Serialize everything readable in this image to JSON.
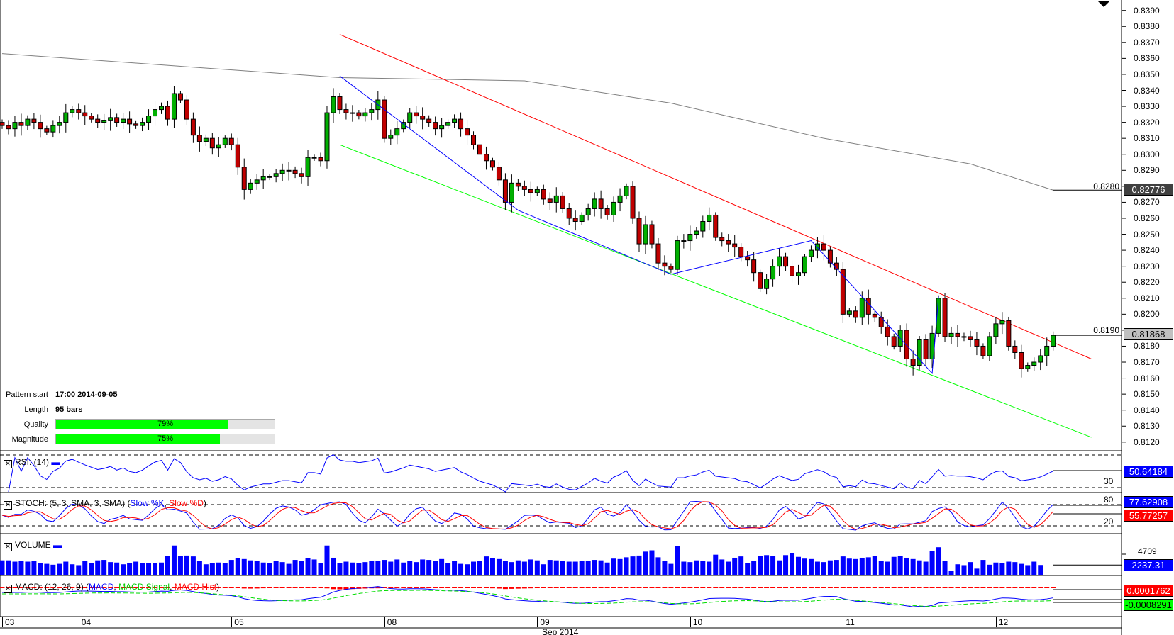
{
  "chart_data": {
    "type": "candlestick",
    "symbol_interval": "hourly",
    "price_axis": {
      "min": 0.812,
      "max": 0.839,
      "step": 0.001,
      "labels": [
        "0.8390",
        "0.8380",
        "0.8370",
        "0.8360",
        "0.8350",
        "0.8340",
        "0.8330",
        "0.8320",
        "0.8310",
        "0.8300",
        "0.8290",
        "0.8280",
        "0.8270",
        "0.8260",
        "0.8250",
        "0.8240",
        "0.8230",
        "0.8220",
        "0.8210",
        "0.8200",
        "0.8190",
        "0.8180",
        "0.8170",
        "0.8160",
        "0.8150",
        "0.8140",
        "0.8130",
        "0.8120"
      ]
    },
    "closes": [
      0.8318,
      0.8316,
      0.832,
      0.8318,
      0.8322,
      0.832,
      0.8316,
      0.8314,
      0.8318,
      0.832,
      0.8326,
      0.8328,
      0.8326,
      0.8324,
      0.8322,
      0.832,
      0.8321,
      0.8323,
      0.832,
      0.8322,
      0.8319,
      0.8318,
      0.832,
      0.8324,
      0.8328,
      0.833,
      0.8322,
      0.8338,
      0.8334,
      0.8322,
      0.8312,
      0.8308,
      0.831,
      0.8304,
      0.8306,
      0.831,
      0.8306,
      0.8292,
      0.8278,
      0.8282,
      0.8284,
      0.8286,
      0.8286,
      0.8288,
      0.829,
      0.829,
      0.8288,
      0.8286,
      0.8298,
      0.8298,
      0.8296,
      0.8326,
      0.8336,
      0.8328,
      0.8326,
      0.8326,
      0.8324,
      0.8326,
      0.8328,
      0.8334,
      0.831,
      0.8312,
      0.8316,
      0.832,
      0.8326,
      0.8324,
      0.8322,
      0.832,
      0.8316,
      0.8318,
      0.832,
      0.8322,
      0.8316,
      0.8312,
      0.8306,
      0.83,
      0.8296,
      0.8292,
      0.8284,
      0.827,
      0.8282,
      0.828,
      0.8278,
      0.8276,
      0.8278,
      0.8272,
      0.827,
      0.8274,
      0.8266,
      0.826,
      0.8258,
      0.8262,
      0.8266,
      0.8272,
      0.8266,
      0.8262,
      0.827,
      0.8274,
      0.828,
      0.826,
      0.8244,
      0.8256,
      0.8244,
      0.8232,
      0.823,
      0.8228,
      0.8246,
      0.8246,
      0.825,
      0.8252,
      0.8258,
      0.8262,
      0.8248,
      0.8246,
      0.8244,
      0.8242,
      0.8236,
      0.8234,
      0.8226,
      0.8216,
      0.8222,
      0.823,
      0.8236,
      0.823,
      0.8224,
      0.8226,
      0.8236,
      0.824,
      0.8244,
      0.824,
      0.8232,
      0.8228,
      0.82,
      0.8202,
      0.8198,
      0.821,
      0.82,
      0.8198,
      0.8192,
      0.8186,
      0.818,
      0.819,
      0.8172,
      0.8168,
      0.8184,
      0.8172,
      0.8188,
      0.821,
      0.8186,
      0.8188,
      0.8186,
      0.8186,
      0.8184,
      0.818,
      0.8174,
      0.8186,
      0.8194,
      0.8196,
      0.818,
      0.8176,
      0.8166,
      0.8168,
      0.817,
      0.8174,
      0.818,
      0.81868
    ],
    "volumes": [
      3300,
      3300,
      3000,
      3200,
      3000,
      3100,
      2600,
      2500,
      2300,
      2500,
      3000,
      2400,
      2200,
      3100,
      2600,
      3300,
      3400,
      2900,
      2800,
      2400,
      2600,
      3000,
      2700,
      2600,
      2600,
      2800,
      4300,
      6700,
      4300,
      4400,
      4200,
      3100,
      2400,
      2600,
      2800,
      2700,
      3400,
      3800,
      3600,
      3300,
      3100,
      2800,
      2700,
      3100,
      2900,
      2500,
      3400,
      3100,
      3800,
      3500,
      2600,
      6700,
      3900,
      2600,
      3000,
      2800,
      2700,
      2900,
      3200,
      3100,
      3400,
      3000,
      3500,
      2800,
      3200,
      2900,
      3500,
      3400,
      3200,
      3600,
      2600,
      3100,
      2500,
      2400,
      3000,
      3100,
      4200,
      3800,
      3600,
      3200,
      2900,
      3300,
      3000,
      3500,
      3300,
      2400,
      3400,
      3300,
      3100,
      3000,
      3000,
      3200,
      3100,
      3400,
      3300,
      2800,
      3700,
      3600,
      4000,
      4200,
      4400,
      5300,
      5600,
      4000,
      3100,
      2500,
      6500,
      3000,
      2900,
      3300,
      3200,
      3000,
      4600,
      3500,
      3000,
      3900,
      4200,
      2700,
      3100,
      4300,
      4500,
      4300,
      3300,
      4500,
      5000,
      4100,
      3700,
      3600,
      3000,
      2900,
      3300,
      3400,
      4200,
      3700,
      3600,
      3900,
      4000,
      4300,
      3200,
      3000,
      4100,
      4300,
      3900,
      3600,
      3300,
      3000,
      5400,
      6300,
      3100,
      900,
      2400,
      2200,
      2900,
      1400,
      3400,
      2300,
      2800,
      2700,
      3000,
      2900,
      2500,
      2200,
      3000,
      2237
    ],
    "trendlines": {
      "resistance": {
        "color": "#ff0000",
        "from": {
          "bar": 53,
          "price": 0.8375
        },
        "to": {
          "bar": 171,
          "price": 0.8172
        }
      },
      "support": {
        "color": "#00ff00",
        "from": {
          "bar": 53,
          "price": 0.8306
        },
        "to": {
          "bar": 171,
          "price": 0.8123
        }
      },
      "pattern_zigzag": {
        "color": "#0000ff",
        "points": [
          [
            53,
            0.8349
          ],
          [
            81,
            0.8265
          ],
          [
            105,
            0.8225
          ],
          [
            127,
            0.8246
          ],
          [
            146,
            0.8163
          ],
          [
            147,
            0.8211
          ]
        ]
      },
      "moving_average": {
        "color": "#808080",
        "points": [
          [
            0,
            0.8363
          ],
          [
            53,
            0.8348
          ],
          [
            82,
            0.8346
          ],
          [
            105,
            0.8332
          ],
          [
            129,
            0.831
          ],
          [
            152,
            0.8294
          ],
          [
            165,
            0.82776
          ]
        ]
      }
    },
    "last_price": "0.81868",
    "ma_value": "0.82776",
    "x_ticks": [
      {
        "bar": 0,
        "label": "03"
      },
      {
        "bar": 12,
        "label": "04"
      },
      {
        "bar": 36,
        "label": "05"
      },
      {
        "bar": 60,
        "label": "08"
      },
      {
        "bar": 84,
        "label": "09"
      },
      {
        "bar": 108,
        "label": "10"
      },
      {
        "bar": 132,
        "label": "11"
      },
      {
        "bar": 156,
        "label": "12"
      }
    ],
    "x_axis_title": "Sep 2014"
  },
  "info": {
    "pattern_start_label": "Pattern start",
    "pattern_start_value": "17:00 2014-09-05",
    "length_label": "Length",
    "length_value": "95 bars",
    "quality_label": "Quality",
    "quality_value": "79%",
    "quality_pct": 79,
    "magnitude_label": "Magnitude",
    "magnitude_value": "75%",
    "magnitude_pct": 75
  },
  "panes": {
    "rsi": {
      "title": "RSI: (14)",
      "value": "50.64184",
      "level_30": "30",
      "color": "#0000ff"
    },
    "stoch": {
      "title": "STOCH: (5, 3, SMA, 3, SMA)",
      "open": " (",
      "k_label": "Slow %K",
      "sep": ", ",
      "d_label": "Slow %D",
      "close": ")",
      "k_value": "77.62908",
      "d_value": "55.77257",
      "level_80": "80",
      "level_20": "20"
    },
    "volume": {
      "title": "VOLUME",
      "value": "2237.31",
      "scale_label": "4709"
    },
    "macd": {
      "title": "MACD: (12, 26, 9)",
      "open": " (",
      "macd_label": "MACD",
      "signal_label": "MACD Signal",
      "hist_label": "MACD Hist",
      "sep": ", ",
      "close": ")",
      "hist_value": "0.0001762",
      "signal_value": "-0.0008291"
    }
  }
}
